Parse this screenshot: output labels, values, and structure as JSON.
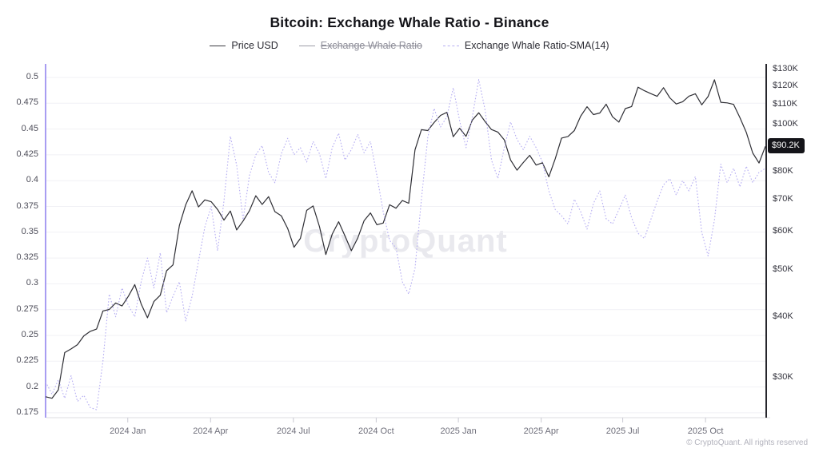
{
  "header": {
    "title": "Bitcoin: Exchange Whale Ratio - Binance"
  },
  "legend": [
    {
      "label": "Price USD",
      "color": "#3a3a42",
      "style": "solid",
      "disabled": false
    },
    {
      "label": "Exchange Whale Ratio",
      "color": "#9b9ba6",
      "style": "solid",
      "disabled": true
    },
    {
      "label": "Exchange Whale Ratio-SMA(14)",
      "color": "#b5adf2",
      "style": "dashed",
      "disabled": false
    }
  ],
  "watermark": "CryptoQuant",
  "price_badge": "$90.2K",
  "footer": {
    "copyright": "© CryptoQuant. All rights reserved"
  },
  "chart_data": {
    "type": "line",
    "title": "Bitcoin: Exchange Whale Ratio - Binance",
    "grid": "horizontal-only",
    "legend_position": "top-center",
    "x_ticks": [
      {
        "pos": 12.9,
        "label": "2024 Jan"
      },
      {
        "pos": 25.9,
        "label": "2024 Apr"
      },
      {
        "pos": 38.9,
        "label": "2024 Jul"
      },
      {
        "pos": 51.9,
        "label": "2024 Oct"
      },
      {
        "pos": 64.8,
        "label": "2025 Jan"
      },
      {
        "pos": 77.8,
        "label": "2025 Apr"
      },
      {
        "pos": 90.6,
        "label": "2025 Jul"
      },
      {
        "pos": 103.6,
        "label": "2025 Oct"
      }
    ],
    "x_range": [
      0,
      113
    ],
    "left_axis": {
      "title": "Exchange Whale Ratio-SMA(14)",
      "scale": "linear",
      "tick_values": [
        0.5,
        0.475,
        0.45,
        0.425,
        0.4,
        0.375,
        0.35,
        0.325,
        0.3,
        0.275,
        0.25,
        0.225,
        0.2,
        0.175
      ],
      "axis_color": "#a89df2"
    },
    "right_axis": {
      "title": "Price USD",
      "scale": "log",
      "tick_values": [
        130,
        120,
        110,
        100,
        80,
        70,
        60,
        50,
        40,
        30
      ],
      "tick_labels": [
        "$130K",
        "$120K",
        "$110K",
        "$100K",
        "$80K",
        "$70K",
        "$60K",
        "$50K",
        "$40K",
        "$30K"
      ],
      "current_value": 90.2,
      "current_label": "$90.2K",
      "axis_color": "#26262c"
    },
    "series": [
      {
        "name": "Price USD",
        "axis": "right",
        "color": "#2e2e34",
        "style": "solid",
        "visible": true,
        "unit": "K USD",
        "values": [
          27.4,
          27.2,
          28.3,
          33.8,
          34.4,
          35.1,
          36.6,
          37.4,
          37.8,
          41.2,
          41.5,
          42.8,
          42.2,
          44.2,
          46.7,
          42.6,
          39.9,
          43.1,
          44.4,
          49.9,
          51.3,
          61.9,
          68.3,
          73.0,
          67.6,
          69.9,
          69.3,
          66.8,
          63.5,
          66.3,
          60.6,
          63.2,
          66.4,
          71.3,
          68.4,
          71.0,
          66.1,
          64.8,
          61.0,
          55.8,
          58.2,
          66.5,
          67.9,
          61.5,
          53.9,
          59.4,
          63.0,
          58.9,
          54.9,
          58.3,
          63.3,
          65.7,
          62.1,
          62.6,
          68.3,
          67.2,
          69.7,
          68.8,
          88.7,
          97.6,
          97.2,
          101.0,
          104.5,
          106.0,
          94.4,
          98.3,
          94.6,
          102.2,
          105.8,
          101.4,
          97.7,
          96.5,
          93.0,
          84.5,
          80.5,
          83.5,
          86.4,
          82.5,
          83.4,
          78.0,
          85.0,
          93.8,
          94.5,
          97.2,
          104.1,
          108.9,
          104.9,
          105.7,
          110.2,
          103.8,
          101.2,
          107.9,
          109.0,
          119.5,
          117.5,
          115.9,
          114.4,
          119.2,
          113.6,
          110.3,
          111.5,
          114.5,
          115.8,
          109.9,
          114.3,
          123.8,
          111.2,
          110.9,
          110.1,
          103.4,
          96.4,
          87.4,
          83.3,
          90.2
        ]
      },
      {
        "name": "Exchange Whale Ratio",
        "axis": "left",
        "color": "#9b9ba6",
        "style": "solid",
        "visible": false,
        "values": []
      },
      {
        "name": "Exchange Whale Ratio-SMA(14)",
        "axis": "left",
        "color": "#b5adf2",
        "style": "dashed",
        "visible": true,
        "values": [
          0.205,
          0.193,
          0.207,
          0.189,
          0.211,
          0.186,
          0.192,
          0.18,
          0.178,
          0.225,
          0.29,
          0.268,
          0.296,
          0.279,
          0.268,
          0.302,
          0.325,
          0.296,
          0.33,
          0.272,
          0.288,
          0.302,
          0.264,
          0.288,
          0.322,
          0.355,
          0.375,
          0.332,
          0.38,
          0.443,
          0.415,
          0.362,
          0.405,
          0.425,
          0.434,
          0.408,
          0.398,
          0.426,
          0.441,
          0.425,
          0.432,
          0.418,
          0.438,
          0.426,
          0.402,
          0.432,
          0.446,
          0.42,
          0.43,
          0.445,
          0.427,
          0.438,
          0.405,
          0.37,
          0.342,
          0.335,
          0.302,
          0.29,
          0.315,
          0.382,
          0.442,
          0.47,
          0.452,
          0.462,
          0.49,
          0.458,
          0.432,
          0.462,
          0.498,
          0.468,
          0.42,
          0.402,
          0.432,
          0.457,
          0.44,
          0.43,
          0.443,
          0.432,
          0.418,
          0.39,
          0.372,
          0.366,
          0.358,
          0.382,
          0.37,
          0.353,
          0.378,
          0.39,
          0.363,
          0.358,
          0.372,
          0.386,
          0.364,
          0.349,
          0.344,
          0.362,
          0.38,
          0.396,
          0.402,
          0.386,
          0.4,
          0.39,
          0.404,
          0.35,
          0.327,
          0.362,
          0.416,
          0.398,
          0.412,
          0.394,
          0.414,
          0.398,
          0.408,
          0.412
        ]
      }
    ]
  }
}
